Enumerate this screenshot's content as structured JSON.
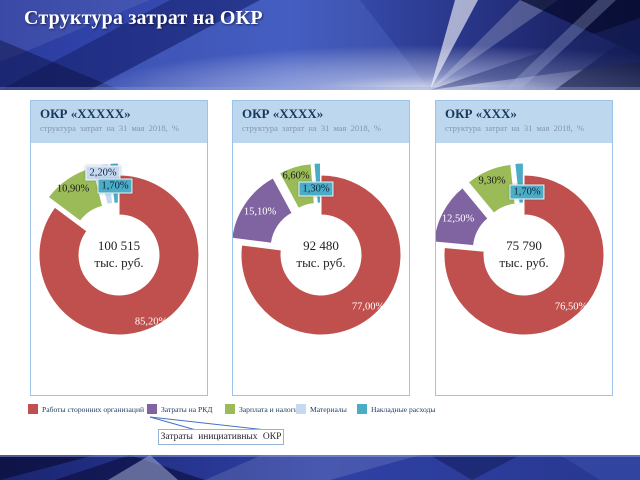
{
  "slide": {
    "title": "Структура затрат на ОКР"
  },
  "theme": {
    "header_navy": "#1B2878",
    "panel_header_bg": "#BDD7EE",
    "panel_border": "#9DC3E6",
    "panel_title_color": "#17375E",
    "red": "#C0504D",
    "purple": "#8064A2",
    "green": "#9BBB59",
    "lavender": "#C6D9F1",
    "teal": "#4BACC6"
  },
  "chart_data": [
    {
      "type": "pie",
      "subtype": "exploded-donut",
      "title": "ОКР «XXXXX»",
      "subtitle": "структура затрат на 31 мая 2018, %",
      "center_value": "100 515",
      "center_unit": "тыс. руб.",
      "legend_position": "shared-bottom",
      "series": [
        {
          "name": "Работы сторонних организаций",
          "value": 85.2,
          "label": "85,20%",
          "color": "#C0504D"
        },
        {
          "name": "Зарплата и налоги",
          "value": 10.9,
          "label": "10,90%",
          "color": "#9BBB59"
        },
        {
          "name": "Материалы",
          "value": 2.2,
          "label": "2,20%",
          "color": "#C6D9F1"
        },
        {
          "name": "Накладные расходы",
          "value": 1.7,
          "label": "1,70%",
          "color": "#4BACC6"
        }
      ]
    },
    {
      "type": "pie",
      "subtype": "exploded-donut",
      "title": "ОКР «XXXX»",
      "subtitle": "структура затрат на 31 мая 2018, %",
      "center_value": "92 480",
      "center_unit": "тыс. руб.",
      "legend_position": "shared-bottom",
      "series": [
        {
          "name": "Работы сторонних организаций",
          "value": 77.0,
          "label": "77,00%",
          "color": "#C0504D"
        },
        {
          "name": "Затраты на РКД",
          "value": 15.1,
          "label": "15,10%",
          "color": "#8064A2"
        },
        {
          "name": "Зарплата и налоги",
          "value": 6.6,
          "label": "6,60%",
          "color": "#9BBB59"
        },
        {
          "name": "Накладные расходы",
          "value": 1.3,
          "label": "1,30%",
          "color": "#4BACC6"
        }
      ]
    },
    {
      "type": "pie",
      "subtype": "exploded-donut",
      "title": "ОКР «XXX»",
      "subtitle": "структура затрат на 31 мая 2018, %",
      "center_value": "75 790",
      "center_unit": "тыс. руб.",
      "legend_position": "shared-bottom",
      "series": [
        {
          "name": "Работы сторонних организаций",
          "value": 76.5,
          "label": "76,50%",
          "color": "#C0504D"
        },
        {
          "name": "Затраты на РКД",
          "value": 12.5,
          "label": "12,50%",
          "color": "#8064A2"
        },
        {
          "name": "Зарплата и налоги",
          "value": 9.3,
          "label": "9,30%",
          "color": "#9BBB59"
        },
        {
          "name": "Накладные расходы",
          "value": 1.7,
          "label": "1,70%",
          "color": "#4BACC6"
        }
      ]
    }
  ],
  "legend": {
    "items": [
      {
        "label": "Работы сторонних организаций",
        "color": "#C0504D"
      },
      {
        "label": "Затраты на РКД",
        "color": "#8064A2"
      },
      {
        "label": "Зарплата и налоги",
        "color": "#9BBB59"
      },
      {
        "label": "Материалы",
        "color": "#C6D9F1"
      },
      {
        "label": "Накладные расходы",
        "color": "#4BACC6"
      }
    ]
  },
  "callout": {
    "text": "Затраты инициативных ОКР"
  }
}
